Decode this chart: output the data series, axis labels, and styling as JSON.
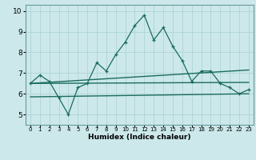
{
  "xlabel": "Humidex (Indice chaleur)",
  "xlim": [
    -0.5,
    23.5
  ],
  "ylim": [
    4.5,
    10.3
  ],
  "xticks": [
    0,
    1,
    2,
    3,
    4,
    5,
    6,
    7,
    8,
    9,
    10,
    11,
    12,
    13,
    14,
    15,
    16,
    17,
    18,
    19,
    20,
    21,
    22,
    23
  ],
  "yticks": [
    5,
    6,
    7,
    8,
    9,
    10
  ],
  "bg_color": "#cce8ea",
  "line_color": "#1a6b5e",
  "grid_color": "#aed4d6",
  "line1_x": [
    0,
    1,
    2,
    3,
    4,
    5,
    6,
    7,
    8,
    9,
    10,
    11,
    12,
    13,
    14,
    15,
    16,
    17,
    18,
    19,
    20,
    21,
    22,
    23
  ],
  "line1_y": [
    6.5,
    6.9,
    6.6,
    5.8,
    5.0,
    6.3,
    6.5,
    7.5,
    7.1,
    7.9,
    8.5,
    9.3,
    9.8,
    8.6,
    9.2,
    8.3,
    7.6,
    6.6,
    7.1,
    7.1,
    6.5,
    6.3,
    6.0,
    6.2
  ],
  "line2_x": [
    0,
    23
  ],
  "line2_y": [
    6.5,
    6.55
  ],
  "line3_x": [
    0,
    23
  ],
  "line3_y": [
    5.85,
    6.0
  ],
  "line4_x": [
    0,
    23
  ],
  "line4_y": [
    6.5,
    7.15
  ]
}
